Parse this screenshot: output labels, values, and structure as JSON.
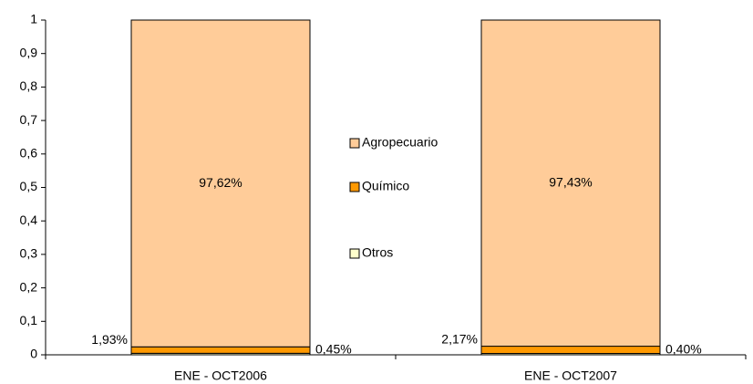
{
  "chart_data": {
    "type": "stacked_bar",
    "categories": [
      "ENE - OCT2006",
      "ENE - OCT2007"
    ],
    "series": [
      {
        "name": "Otros",
        "color": "#FFFFCC",
        "values": [
          0.0045,
          0.004
        ],
        "value_labels": [
          "0,45%",
          "0,40%"
        ]
      },
      {
        "name": "Químico",
        "color": "#FF9900",
        "values": [
          0.0193,
          0.0217
        ],
        "value_labels": [
          "1,93%",
          "2,17%"
        ]
      },
      {
        "name": "Agropecuario",
        "color": "#FFCC99",
        "values": [
          0.9762,
          0.9743
        ],
        "value_labels": [
          "97,62%",
          "97,43%"
        ]
      }
    ],
    "ylim": [
      0,
      1
    ],
    "yticks": [
      0,
      {
        "value": 0.1,
        "label": "0,1"
      },
      {
        "value": 0.2,
        "label": "0,2"
      },
      {
        "value": 0.3,
        "label": "0,3"
      },
      {
        "value": 0.4,
        "label": "0,4"
      },
      {
        "value": 0.5,
        "label": "0,5"
      },
      {
        "value": 0.6,
        "label": "0,6"
      },
      {
        "value": 0.7,
        "label": "0,7"
      },
      {
        "value": 0.8,
        "label": "0,8"
      },
      {
        "value": 0.9,
        "label": "0,9"
      },
      1
    ],
    "grid": false
  }
}
